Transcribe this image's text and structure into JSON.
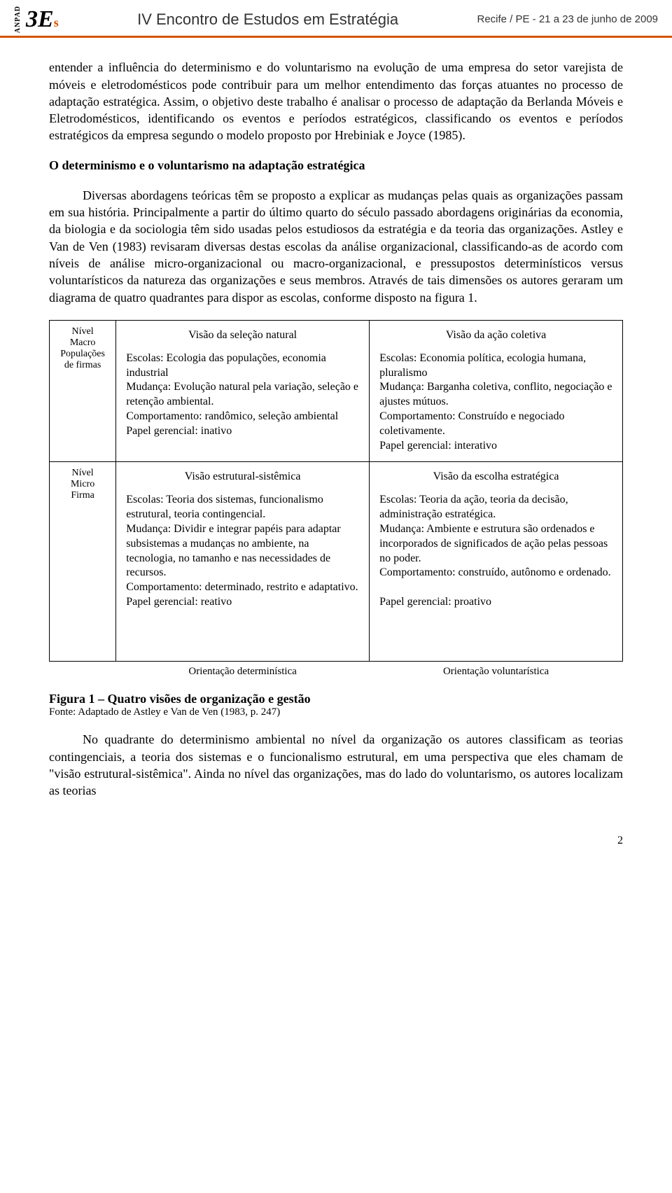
{
  "header": {
    "anpad": "ANPAD",
    "logo_main": "3E",
    "logo_sub": "s",
    "title": "IV Encontro de Estudos em Estratégia",
    "place_date": "Recife / PE - 21 a 23 de junho de 2009",
    "underline_color": "#d35400"
  },
  "body": {
    "p1": "entender a influência do determinismo e do voluntarismo na evolução de uma empresa do setor varejista de móveis e eletrodomésticos pode contribuir para um melhor entendimento das forças atuantes no processo de adaptação estratégica. Assim, o objetivo deste trabalho é analisar o processo de adaptação da Berlanda Móveis e Eletrodomésticos, identificando os eventos e períodos estratégicos, classificando os eventos e períodos estratégicos da empresa segundo o modelo proposto por Hrebiniak e Joyce (1985).",
    "h1": "O determinismo e o voluntarismo na adaptação estratégica",
    "p2": "Diversas abordagens teóricas têm se proposto a explicar as mudanças pelas quais as organizações passam em sua história. Principalmente a partir do último quarto do século passado abordagens originárias da economia, da biologia e da sociologia têm sido usadas pelos estudiosos da estratégia e da teoria das organizações. Astley e Van de Ven (1983) revisaram diversas destas escolas da análise organizacional, classificando-as de acordo com níveis de análise micro-organizacional ou macro-organizacional, e pressupostos determinísticos versus voluntarísticos da natureza das organizações e seus membros. Através de tais dimensões os autores geraram um diagrama de quatro quadrantes para dispor as escolas, conforme disposto na figura 1.",
    "p3": "No quadrante do determinismo ambiental no nível da organização os autores classificam as teorias contingenciais, a teoria dos sistemas e o funcionalismo estrutural, em uma perspectiva que eles chamam de \"visão estrutural-sistêmica\". Ainda no nível das organizações, mas do lado do voluntarismo, os autores localizam as teorias"
  },
  "figure": {
    "row_labels": {
      "macro": "Nível\nMacro\nPopulações\nde firmas",
      "micro": "Nível\nMicro\nFirma"
    },
    "orientation": {
      "left": "Orientação determinística",
      "right": "Orientação voluntarística"
    },
    "q1": {
      "title": "Visão da seleção natural",
      "text": "Escolas: Ecologia das populações, economia industrial\nMudança: Evolução natural pela variação, seleção e retenção ambiental.\nComportamento: randômico, seleção ambiental\nPapel gerencial: inativo"
    },
    "q2": {
      "title": "Visão da ação coletiva",
      "text": "Escolas: Economia política, ecologia humana, pluralismo\nMudança: Barganha coletiva, conflito, negociação e ajustes mútuos.\nComportamento: Construído e negociado coletivamente.\nPapel gerencial: interativo"
    },
    "q3": {
      "title": "Visão estrutural-sistêmica",
      "text": "Escolas: Teoria dos sistemas, funcionalismo estrutural, teoria contingencial.\nMudança: Dividir e integrar papéis para adaptar subsistemas a mudanças no ambiente, na tecnologia, no tamanho e nas necessidades de recursos.\nComportamento: determinado, restrito e adaptativo.\nPapel gerencial: reativo"
    },
    "q4": {
      "title": "Visão da escolha estratégica",
      "text": "Escolas: Teoria da ação, teoria da decisão, administração estratégica.\nMudança: Ambiente e estrutura são ordenados e incorporados de significados de ação pelas pessoas no poder.\nComportamento: construído, autônomo e ordenado.\n\nPapel gerencial: proativo"
    },
    "caption_bold": "Figura 1 – Quatro visões de organização e gestão",
    "caption_src": "Fonte: Adaptado de Astley e Van de Ven (1983, p. 247)"
  },
  "page_number": "2"
}
